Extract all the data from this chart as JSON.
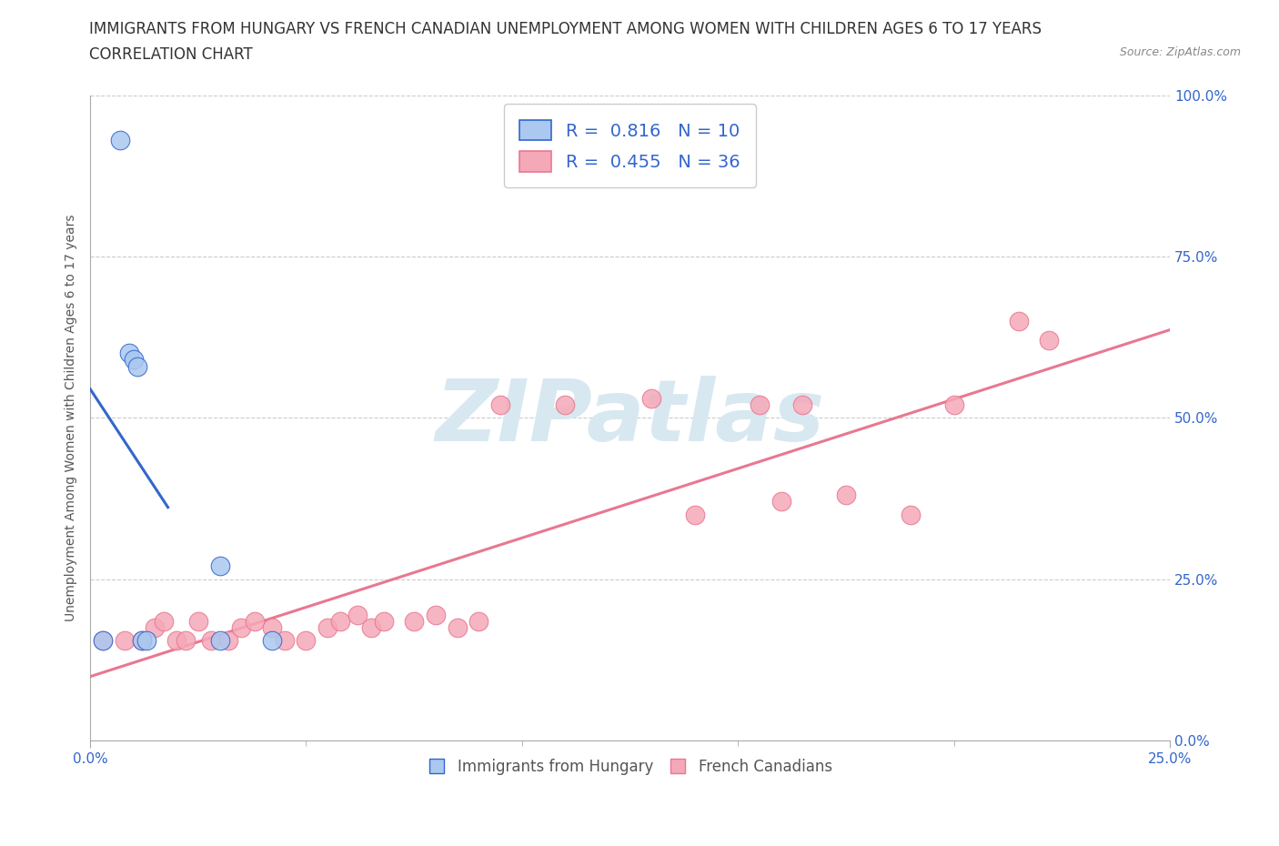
{
  "title_line1": "IMMIGRANTS FROM HUNGARY VS FRENCH CANADIAN UNEMPLOYMENT AMONG WOMEN WITH CHILDREN AGES 6 TO 17 YEARS",
  "title_line2": "CORRELATION CHART",
  "source": "Source: ZipAtlas.com",
  "ylabel": "Unemployment Among Women with Children Ages 6 to 17 years",
  "xlim": [
    0,
    0.25
  ],
  "ylim": [
    0,
    1.0
  ],
  "xtick_vals": [
    0.0,
    0.25
  ],
  "xtick_labels": [
    "0.0%",
    "25.0%"
  ],
  "ytick_vals": [
    0.0,
    0.25,
    0.5,
    0.75,
    1.0
  ],
  "ytick_labels": [
    "0.0%",
    "25.0%",
    "50.0%",
    "75.0%",
    "100.0%"
  ],
  "grid_color": "#cccccc",
  "background_color": "#ffffff",
  "hungary_color": "#aac8f0",
  "french_color": "#f5a8b8",
  "hungary_line_color": "#3366cc",
  "french_line_color": "#e87890",
  "hungary_R": 0.816,
  "hungary_N": 10,
  "french_R": 0.455,
  "french_N": 36,
  "legend_text_color": "#3366cc",
  "tick_color": "#3366cc",
  "watermark_color": "#d8e8f0",
  "hungary_x": [
    0.003,
    0.007,
    0.009,
    0.01,
    0.011,
    0.012,
    0.013,
    0.03,
    0.03,
    0.042
  ],
  "hungary_y": [
    0.155,
    0.93,
    0.6,
    0.59,
    0.58,
    0.155,
    0.155,
    0.27,
    0.155,
    0.155
  ],
  "french_x": [
    0.003,
    0.008,
    0.012,
    0.015,
    0.017,
    0.02,
    0.022,
    0.025,
    0.028,
    0.032,
    0.035,
    0.038,
    0.042,
    0.045,
    0.05,
    0.055,
    0.058,
    0.062,
    0.065,
    0.068,
    0.075,
    0.08,
    0.085,
    0.09,
    0.095,
    0.11,
    0.13,
    0.14,
    0.155,
    0.16,
    0.165,
    0.175,
    0.19,
    0.2,
    0.215,
    0.222
  ],
  "french_y": [
    0.155,
    0.155,
    0.155,
    0.175,
    0.185,
    0.155,
    0.155,
    0.185,
    0.155,
    0.155,
    0.175,
    0.185,
    0.175,
    0.155,
    0.155,
    0.175,
    0.185,
    0.195,
    0.175,
    0.185,
    0.185,
    0.195,
    0.175,
    0.185,
    0.52,
    0.52,
    0.53,
    0.35,
    0.52,
    0.37,
    0.52,
    0.38,
    0.35,
    0.52,
    0.65,
    0.62
  ],
  "title_fontsize": 12,
  "axis_label_fontsize": 10,
  "tick_fontsize": 11,
  "legend_fontsize": 14
}
